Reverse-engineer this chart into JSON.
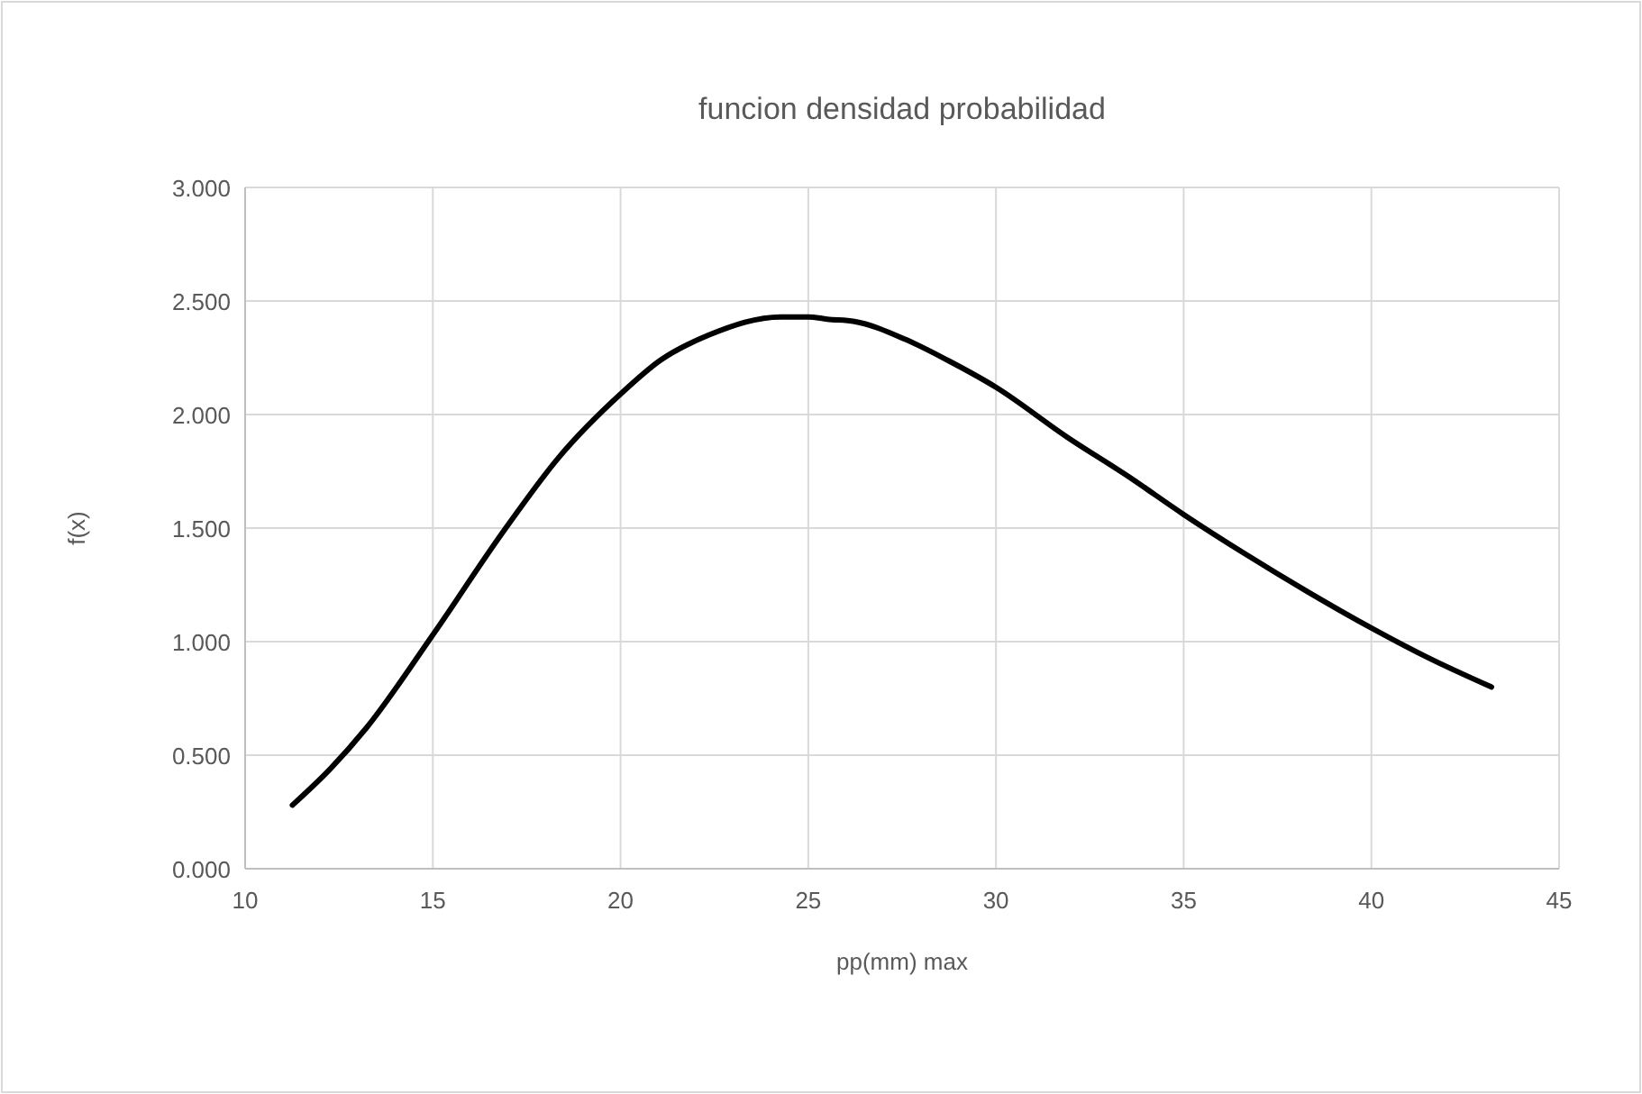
{
  "chart_data": {
    "type": "line",
    "title": "funcion densidad probabilidad",
    "xlabel": "pp(mm) max",
    "ylabel": "f(x)",
    "series": [
      {
        "color": "#000000",
        "x": [
          11.26,
          12.27,
          13.23,
          15,
          16.9,
          18.35,
          20,
          21.07,
          22.35,
          24.27,
          25,
          25.51,
          26.23,
          27.6,
          28.7,
          30,
          31.9,
          33.5,
          35,
          36.7,
          38.3,
          40,
          41.5,
          43.2
        ],
        "values": [
          0.28,
          0.44,
          0.62,
          1.03,
          1.49,
          1.81,
          2.09,
          2.24,
          2.35,
          2.43,
          2.43,
          2.42,
          2.41,
          2.33,
          2.24,
          2.12,
          1.9,
          1.73,
          1.56,
          1.38,
          1.22,
          1.06,
          0.93,
          0.8
        ]
      }
    ],
    "xlim": [
      10,
      45
    ],
    "xticks": [
      10,
      15,
      20,
      25,
      30,
      35,
      40,
      45
    ],
    "ylim": [
      0,
      3
    ],
    "yticks": [
      {
        "value": 0,
        "label": "0.000"
      },
      {
        "value": 0.5,
        "label": "0.500"
      },
      {
        "value": 1,
        "label": "1.000"
      },
      {
        "value": 1.5,
        "label": "1.500"
      },
      {
        "value": 2,
        "label": "2.000"
      },
      {
        "value": 2.5,
        "label": "2.500"
      },
      {
        "value": 3,
        "label": "3.000"
      }
    ],
    "grid": true,
    "marker": "none",
    "line_style": "solid"
  }
}
